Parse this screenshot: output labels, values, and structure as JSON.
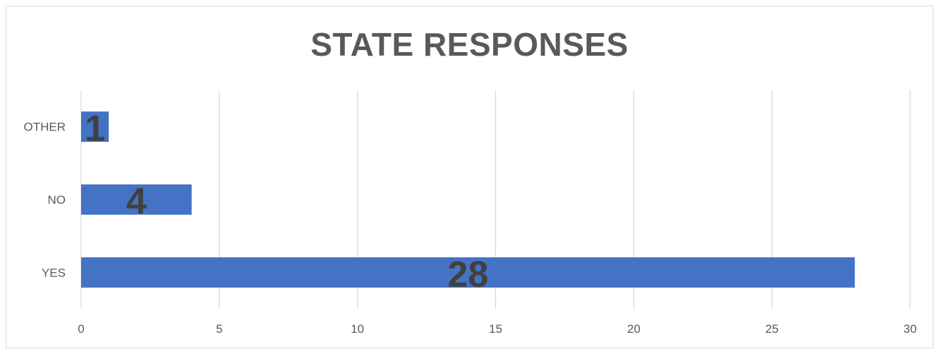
{
  "chart_data": {
    "type": "bar",
    "orientation": "horizontal",
    "title": "STATE RESPONSES",
    "categories": [
      "YES",
      "NO",
      "OTHER"
    ],
    "values": [
      28,
      4,
      1
    ],
    "data_labels": [
      "28",
      "4",
      "1"
    ],
    "xlim": [
      0,
      30
    ],
    "x_ticks": [
      0,
      5,
      10,
      15,
      20,
      25,
      30
    ],
    "xlabel": "",
    "ylabel": "",
    "grid": true,
    "legend": "none",
    "bar_color": "#4472c4",
    "gridline_color": "#d9d9d9"
  }
}
